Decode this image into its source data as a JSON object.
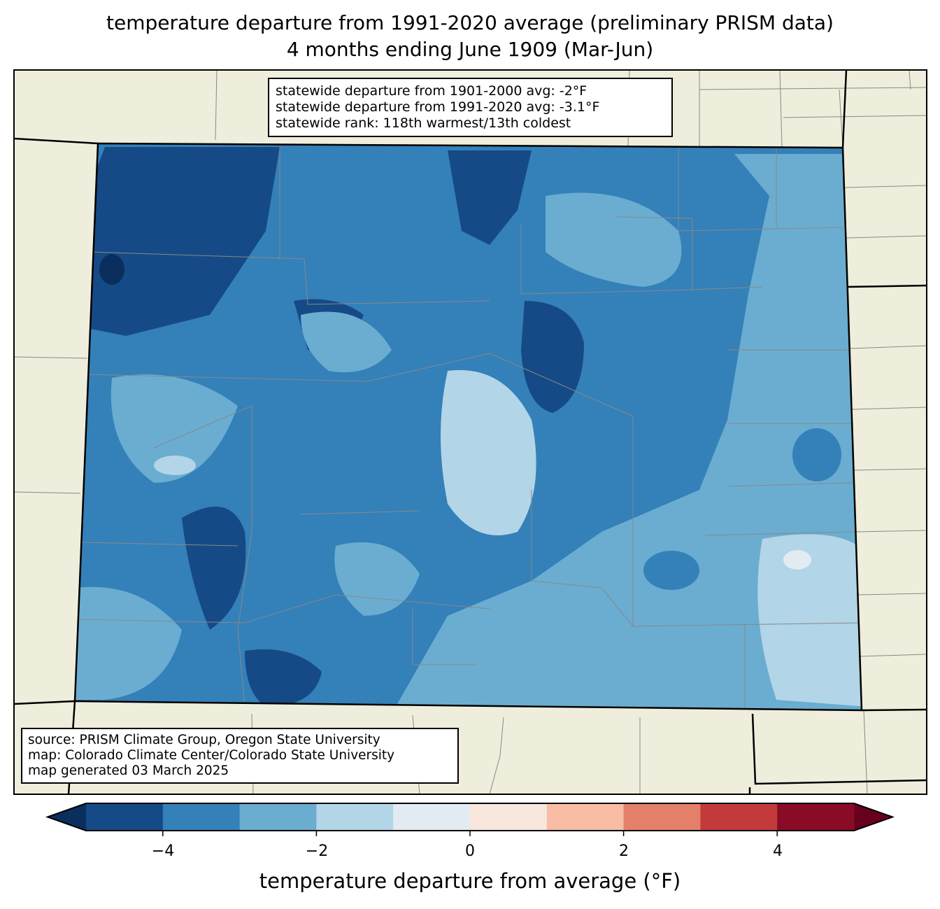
{
  "title": {
    "line1": "temperature departure from 1991-2020 average (preliminary PRISM data)",
    "line2": "4 months ending June 1909 (Mar-Jun)"
  },
  "stats_box": {
    "line1": "statewide departure from 1901-2000 avg: -2°F",
    "line2": "statewide departure from 1991-2020 avg: -3.1°F",
    "line3": "statewide rank: 118th warmest/13th coldest"
  },
  "source_box": {
    "line1": "source: PRISM Climate Group, Oregon State University",
    "line2": "map: Colorado Climate Center/Colorado State University",
    "line3": "map generated 03 March 2025"
  },
  "colorbar": {
    "label": "temperature departure from average (°F)",
    "levels": [
      -5,
      -4,
      -3,
      -2,
      -1,
      0,
      1,
      2,
      3,
      4,
      5
    ],
    "colors": [
      "#154a86",
      "#3480b9",
      "#6aadd1",
      "#b2d5e7",
      "#e3ebf2",
      "#f9e7dd",
      "#f8bda4",
      "#e4806a",
      "#c33a3b",
      "#8a0b25"
    ],
    "under_color": "#0a2f5e",
    "over_color": "#67001f",
    "ticks": [
      "−4",
      "−2",
      "0",
      "2",
      "4"
    ]
  },
  "map_colors": {
    "land": "#efeedc"
  }
}
